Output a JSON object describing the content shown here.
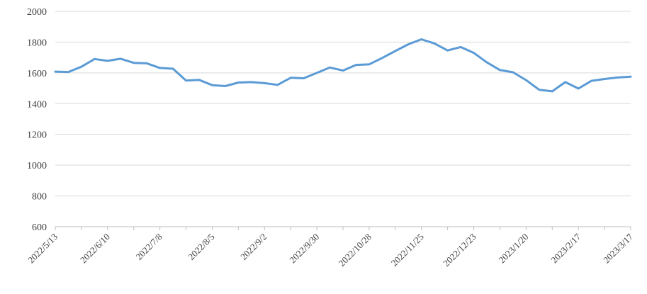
{
  "chart_data": {
    "type": "line",
    "title": "",
    "xlabel": "",
    "ylabel": "",
    "x": [
      "2022/5/13",
      "2022/5/20",
      "2022/5/27",
      "2022/6/3",
      "2022/6/10",
      "2022/6/17",
      "2022/6/24",
      "2022/7/1",
      "2022/7/8",
      "2022/7/15",
      "2022/7/22",
      "2022/7/29",
      "2022/8/5",
      "2022/8/12",
      "2022/8/19",
      "2022/8/26",
      "2022/9/2",
      "2022/9/9",
      "2022/9/16",
      "2022/9/23",
      "2022/9/30",
      "2022/10/7",
      "2022/10/14",
      "2022/10/21",
      "2022/10/28",
      "2022/11/4",
      "2022/11/11",
      "2022/11/18",
      "2022/11/25",
      "2022/12/2",
      "2022/12/9",
      "2022/12/16",
      "2022/12/23",
      "2022/12/30",
      "2023/1/6",
      "2023/1/13",
      "2023/1/20",
      "2023/1/27",
      "2023/2/3",
      "2023/2/10",
      "2023/2/17",
      "2023/2/24",
      "2023/3/3",
      "2023/3/10",
      "2023/3/17"
    ],
    "series": [
      {
        "name": "weekly-price",
        "values": [
          1608,
          1606,
          1640,
          1690,
          1678,
          1692,
          1665,
          1662,
          1632,
          1627,
          1550,
          1554,
          1520,
          1514,
          1537,
          1540,
          1533,
          1522,
          1568,
          1565,
          1600,
          1635,
          1615,
          1652,
          1655,
          1697,
          1742,
          1786,
          1818,
          1791,
          1746,
          1768,
          1730,
          1668,
          1618,
          1604,
          1553,
          1490,
          1480,
          1540,
          1498,
          1548,
          1560,
          1570,
          1575
        ]
      }
    ],
    "x_tick_labels_shown": [
      "2022/5/13",
      "2022/6/10",
      "2022/7/8",
      "2022/8/5",
      "2022/9/2",
      "2022/9/30",
      "2022/10/28",
      "2022/11/25",
      "2022/12/23",
      "2023/1/20",
      "2023/2/17",
      "2023/3/17"
    ],
    "x_label_every": 4,
    "x_tick_every": 2,
    "y_ticks": [
      600,
      800,
      1000,
      1200,
      1400,
      1600,
      1800,
      2000
    ],
    "ylim": [
      600,
      2000
    ],
    "grid": true,
    "legend": false
  },
  "colors": {
    "line": "#5B9BD5",
    "gridline": "#D9D9D9",
    "axis": "#BFBFBF",
    "tick_label": "#404040",
    "background": "#FFFFFF"
  }
}
